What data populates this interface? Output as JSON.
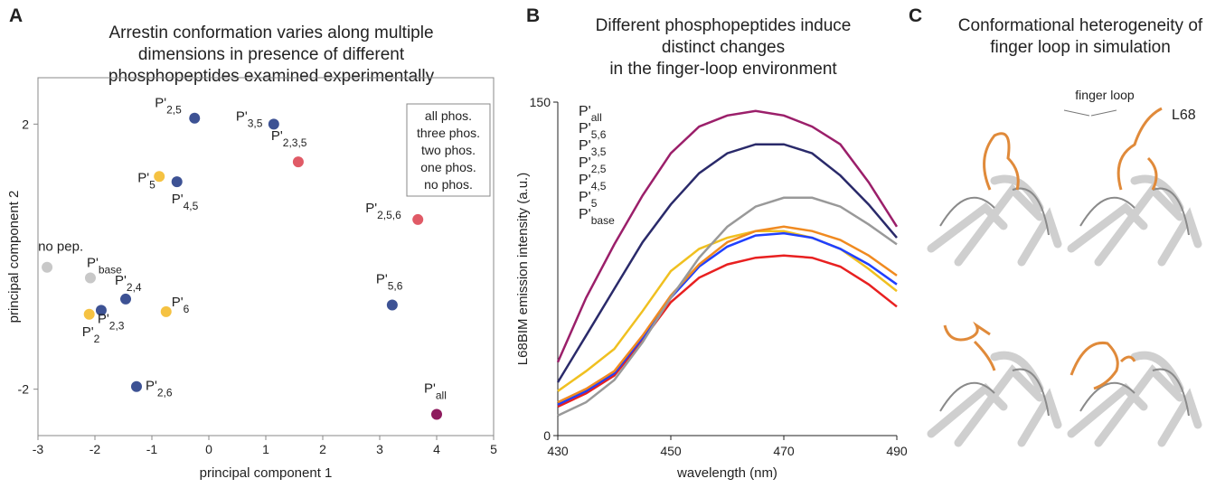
{
  "chart_data": [
    {
      "type": "scatter",
      "panel_label": "A",
      "title": [
        "Arrestin conformation varies along multiple",
        "dimensions in presence of different",
        "phosphopeptides examined experimentally"
      ],
      "x_label": "principal component 1",
      "y_label": "principal component 2",
      "xlim": [
        -3,
        5
      ],
      "xticks": [
        -3,
        -2,
        -1,
        0,
        1,
        2,
        3,
        4,
        5
      ],
      "ylim": [
        -2.7,
        2.7
      ],
      "yticks": [
        -2,
        2
      ],
      "legend": "top-right",
      "series": [
        {
          "name": "all phos.",
          "color": "#8e1b5e",
          "x": [
            4.0
          ],
          "values": [
            -2.38
          ],
          "labels": [
            {
              "text": "P'",
              "sub": "all"
            }
          ]
        },
        {
          "name": "three phos.",
          "color": "#e05a66",
          "x": [
            1.57,
            3.67
          ],
          "values": [
            1.43,
            0.56
          ],
          "labels": [
            {
              "text": "P'",
              "sub": "2,3,5"
            },
            {
              "text": "P'",
              "sub": "2,5,6"
            }
          ]
        },
        {
          "name": "two phos.",
          "color": "#3d5294",
          "x": [
            -0.25,
            1.14,
            -0.56,
            -1.46,
            -1.89,
            3.22,
            -1.27
          ],
          "values": [
            2.09,
            2.0,
            1.13,
            -0.64,
            -0.81,
            -0.73,
            -1.96
          ],
          "labels": [
            {
              "text": "P'",
              "sub": "2,5"
            },
            {
              "text": "P'",
              "sub": "3,5"
            },
            {
              "text": "P'",
              "sub": "4,5"
            },
            {
              "text": "P'",
              "sub": "2,4"
            },
            {
              "text": "P'",
              "sub": "2,3"
            },
            {
              "text": "P'",
              "sub": "5,6"
            },
            {
              "text": "P'",
              "sub": "2,6"
            }
          ]
        },
        {
          "name": "one phos.",
          "color": "#f5c242",
          "x": [
            -0.87,
            -0.75,
            -2.1
          ],
          "values": [
            1.21,
            -0.83,
            -0.87
          ],
          "labels": [
            {
              "text": "P'",
              "sub": "5"
            },
            {
              "text": "P'",
              "sub": "6"
            },
            {
              "text": "P'",
              "sub": "2"
            }
          ]
        },
        {
          "name": "no phos.",
          "color": "#c8c8c8",
          "x": [
            -2.84,
            -2.08
          ],
          "values": [
            -0.16,
            -0.32
          ],
          "labels": [
            {
              "text": "no pep."
            },
            {
              "text": "P'",
              "sub": "base"
            }
          ]
        }
      ]
    },
    {
      "type": "line",
      "panel_label": "B",
      "title": [
        "Different phosphopeptides induce",
        "distinct changes",
        "in the finger-loop environment"
      ],
      "x_label": "wavelength (nm)",
      "y_label": "L68BIM emission intensity (a.u.)",
      "xlim": [
        430,
        490
      ],
      "xticks": [
        430,
        450,
        470,
        490
      ],
      "ylim": [
        0,
        150
      ],
      "yticks": [
        0,
        150
      ],
      "legend": "top-left",
      "x": [
        430,
        435,
        440,
        445,
        450,
        455,
        460,
        465,
        470,
        475,
        480,
        485,
        490
      ],
      "series": [
        {
          "name": "P'",
          "sub": "all",
          "color": "#9b1f6a",
          "values": [
            33,
            62,
            86,
            108,
            127,
            139,
            144,
            146,
            144,
            139,
            131,
            114,
            94
          ]
        },
        {
          "name": "P'",
          "sub": "5,6",
          "color": "#2a2a6a",
          "values": [
            24,
            45,
            66,
            87,
            104,
            118,
            127,
            131,
            131,
            127,
            117,
            104,
            89
          ]
        },
        {
          "name": "P'",
          "sub": "3,5",
          "color": "#f0c020",
          "values": [
            20,
            29,
            39,
            56,
            74,
            84,
            89,
            92,
            92,
            89,
            84,
            75,
            65
          ]
        },
        {
          "name": "P'",
          "sub": "2,5",
          "color": "#e82020",
          "values": [
            13,
            19,
            27,
            43,
            60,
            71,
            77,
            80,
            81,
            80,
            76,
            68,
            58
          ]
        },
        {
          "name": "P'",
          "sub": "4,5",
          "color": "#2040ff",
          "values": [
            14,
            20,
            28,
            44,
            62,
            76,
            85,
            90,
            91,
            89,
            84,
            77,
            68
          ]
        },
        {
          "name": "P'",
          "sub": "5",
          "color": "#f08a20",
          "values": [
            15,
            21,
            29,
            45,
            63,
            77,
            87,
            92,
            94,
            92,
            88,
            81,
            72
          ]
        },
        {
          "name": "P'",
          "sub": "base",
          "color": "#999999",
          "values": [
            9,
            15,
            25,
            42,
            62,
            80,
            94,
            103,
            107,
            107,
            103,
            95,
            86
          ]
        }
      ]
    }
  ],
  "panel_c": {
    "label": "C",
    "title": [
      "Conformational heterogeneity of",
      "finger loop in simulation"
    ],
    "annotations": [
      "finger loop",
      "L68"
    ]
  }
}
